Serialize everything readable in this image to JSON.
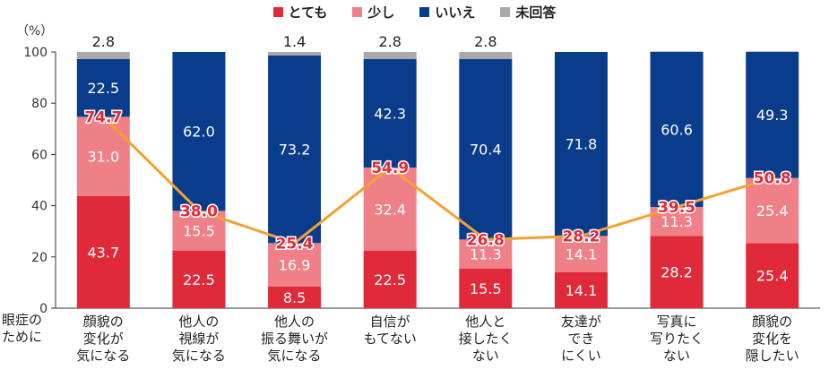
{
  "legend": {
    "items": [
      {
        "label": "とても",
        "color": "#e02a3a"
      },
      {
        "label": "少し",
        "color": "#f08088"
      },
      {
        "label": "いいえ",
        "color": "#0a3c8c"
      },
      {
        "label": "未回答",
        "color": "#aaaaaa"
      }
    ]
  },
  "unit_label": "（%）",
  "row_label": "眼症の\nために",
  "chart_data": {
    "type": "bar",
    "stacked": true,
    "categories": [
      "顔貌の\n変化が\n気になる",
      "他人の\n視線が\n気になる",
      "他人の\n振る舞いが\n気になる",
      "自信が\nもてない",
      "他人と\n接したく\nない",
      "友達が\nでき\nにくい",
      "写真に\n写りたく\nない",
      "顔貌の\n変化を\n隠したい"
    ],
    "series": [
      {
        "name": "とても",
        "color": "#e02a3a",
        "values": [
          43.7,
          22.5,
          8.5,
          22.5,
          15.5,
          14.1,
          28.2,
          25.4
        ]
      },
      {
        "name": "少し",
        "color": "#f08088",
        "values": [
          31.0,
          15.5,
          16.9,
          32.4,
          11.3,
          14.1,
          11.3,
          25.4
        ]
      },
      {
        "name": "いいえ",
        "color": "#0a3c8c",
        "values": [
          22.5,
          62.0,
          73.2,
          42.3,
          70.4,
          71.8,
          60.6,
          49.3
        ]
      },
      {
        "name": "未回答",
        "color": "#aaaaaa",
        "values": [
          2.8,
          0,
          1.4,
          2.8,
          2.8,
          0,
          0,
          0
        ]
      }
    ],
    "line": {
      "color": "#f5a030",
      "values": [
        74.7,
        38.0,
        25.4,
        54.9,
        26.8,
        28.2,
        39.5,
        50.8
      ],
      "label_color": "#e02a3a"
    },
    "ylim": [
      0,
      100
    ],
    "yticks": [
      0,
      20,
      40,
      60,
      80,
      100
    ]
  }
}
